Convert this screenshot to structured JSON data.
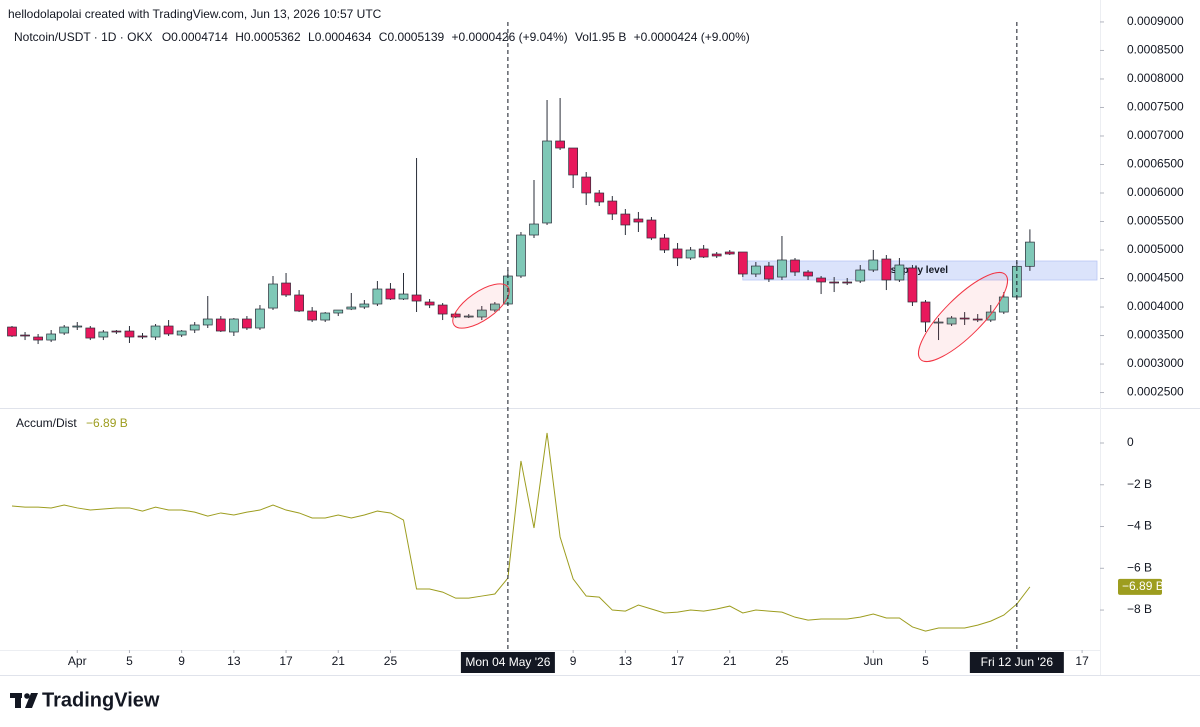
{
  "header": {
    "attribution": "hellodolapolai created with TradingView.com, Jun 13, 2026 10:57 UTC",
    "symbol": "Notcoin/USDT · 1D · OKX",
    "ohlc_labels": [
      "O",
      "H",
      "L",
      "C"
    ],
    "change": "+0.0000426 (+9.04%)",
    "volume": "Vol1.95 B",
    "volume_change": "+0.0000424 (+9.00%)"
  },
  "footer": {
    "brand": "TradingView"
  },
  "chart_data": [
    {
      "type": "candlestick",
      "up_color": "#7fc8b7",
      "down_color": "#e8185c",
      "categories": [
        "2026-03-27",
        "2026-03-28",
        "2026-03-29",
        "2026-03-30",
        "2026-03-31",
        "2026-04-01",
        "2026-04-02",
        "2026-04-03",
        "2026-04-04",
        "2026-04-05",
        "2026-04-06",
        "2026-04-07",
        "2026-04-08",
        "2026-04-09",
        "2026-04-10",
        "2026-04-11",
        "2026-04-12",
        "2026-04-13",
        "2026-04-14",
        "2026-04-15",
        "2026-04-16",
        "2026-04-17",
        "2026-04-18",
        "2026-04-19",
        "2026-04-20",
        "2026-04-21",
        "2026-04-22",
        "2026-04-23",
        "2026-04-24",
        "2026-04-25",
        "2026-04-26",
        "2026-04-27",
        "2026-04-28",
        "2026-04-29",
        "2026-04-30",
        "2026-05-01",
        "2026-05-02",
        "2026-05-03",
        "2026-05-04",
        "2026-05-05",
        "2026-05-06",
        "2026-05-07",
        "2026-05-08",
        "2026-05-09",
        "2026-05-10",
        "2026-05-11",
        "2026-05-12",
        "2026-05-13",
        "2026-05-14",
        "2026-05-15",
        "2026-05-16",
        "2026-05-17",
        "2026-05-18",
        "2026-05-19",
        "2026-05-20",
        "2026-05-21",
        "2026-05-22",
        "2026-05-23",
        "2026-05-24",
        "2026-05-25",
        "2026-05-26",
        "2026-05-27",
        "2026-05-28",
        "2026-05-29",
        "2026-05-30",
        "2026-05-31",
        "2026-06-01",
        "2026-06-02",
        "2026-06-03",
        "2026-06-04",
        "2026-06-05",
        "2026-06-06",
        "2026-06-07",
        "2026-06-08",
        "2026-06-09",
        "2026-06-10",
        "2026-06-11",
        "2026-06-12",
        "2026-06-13"
      ],
      "open": [
        0.0003649,
        0.0003509,
        0.0003474,
        0.0003421,
        0.0003544,
        0.0003649,
        0.0003632,
        0.0003474,
        0.0003579,
        0.0003579,
        0.0003492,
        0.0003474,
        0.0003667,
        0.0003509,
        0.0003597,
        0.0003685,
        0.000379,
        0.0003562,
        0.000379,
        0.0003632,
        0.0003982,
        0.0004421,
        0.0004211,
        0.000393,
        0.0003772,
        0.0003895,
        0.0003965,
        0.0004,
        0.0004053,
        0.0004316,
        0.0004141,
        0.0004211,
        0.0004088,
        0.0004035,
        0.0003877,
        0.0003842,
        0.0003825,
        0.0003947,
        0.0004053,
        0.0004544,
        0.0005263,
        0.0005474,
        0.0006912,
        0.0006789,
        0.000628,
        0.0006,
        0.0005859,
        0.0005631,
        0.0005544,
        0.0005526,
        0.000521,
        0.0005018,
        0.000486,
        0.0005018,
        0.000493,
        0.0004965,
        0.0004965,
        0.0004579,
        0.0004719,
        0.0004526,
        0.0004825,
        0.0004614,
        0.0004509,
        0.0004439,
        0.0004439,
        0.0004456,
        0.0004649,
        0.0004842,
        0.0004474,
        0.0004684,
        0.0004088,
        0.0003737,
        0.0003702,
        0.0003807,
        0.000379,
        0.0003772,
        0.0003912,
        0.0004176,
        0.0004714
      ],
      "high": [
        0.0003667,
        0.0003562,
        0.0003527,
        0.0003597,
        0.0003685,
        0.0003737,
        0.0003667,
        0.0003597,
        0.0003597,
        0.0003667,
        0.0003544,
        0.0003702,
        0.0003772,
        0.0003597,
        0.0003737,
        0.0004193,
        0.0003842,
        0.0003807,
        0.0003842,
        0.0004035,
        0.0004544,
        0.0004597,
        0.0004298,
        0.0004,
        0.0003912,
        0.0003947,
        0.0004246,
        0.0004123,
        0.0004456,
        0.0004421,
        0.0004597,
        0.0006614,
        0.0004141,
        0.000407,
        0.0003912,
        0.0003877,
        0.0004018,
        0.0004088,
        0.0004649,
        0.0005316,
        0.0006228,
        0.0007631,
        0.0007666,
        0.0006789,
        0.0006368,
        0.0006052,
        0.0005947,
        0.0005719,
        0.0005667,
        0.0005579,
        0.0005281,
        0.0005123,
        0.0005053,
        0.0005088,
        0.0004965,
        0.0005,
        0.0004965,
        0.000479,
        0.000479,
        0.0005246,
        0.000486,
        0.0004649,
        0.0004544,
        0.0004526,
        0.0004509,
        0.0004737,
        0.0005,
        0.0004912,
        0.000486,
        0.0004737,
        0.0004123,
        0.0003807,
        0.0003842,
        0.0003912,
        0.0003877,
        0.0004035,
        0.0004263,
        0.000479,
        0.0005362
      ],
      "low": [
        0.0003474,
        0.0003421,
        0.0003351,
        0.0003386,
        0.0003509,
        0.0003597,
        0.0003421,
        0.0003421,
        0.0003527,
        0.0003369,
        0.0003439,
        0.0003421,
        0.0003492,
        0.0003474,
        0.0003544,
        0.0003632,
        0.0003562,
        0.0003492,
        0.0003597,
        0.0003597,
        0.0003947,
        0.0004176,
        0.0003912,
        0.0003737,
        0.0003737,
        0.0003842,
        0.0003947,
        0.0003965,
        0.0004018,
        0.0004123,
        0.0004123,
        0.0003912,
        0.0003982,
        0.0003772,
        0.0003807,
        0.0003807,
        0.0003772,
        0.0003912,
        0.0004018,
        0.0004509,
        0.000521,
        0.0005439,
        0.0006754,
        0.0006087,
        0.0005789,
        0.0005772,
        0.0005526,
        0.0005263,
        0.0005316,
        0.0005175,
        0.0004947,
        0.0004719,
        0.0004825,
        0.000486,
        0.000486,
        0.0004912,
        0.0004526,
        0.0004526,
        0.0004439,
        0.0004474,
        0.0004544,
        0.0004474,
        0.0004228,
        0.0004263,
        0.0004386,
        0.0004421,
        0.0004614,
        0.0004298,
        0.0004439,
        0.0004018,
        0.0003562,
        0.0003421,
        0.0003667,
        0.0003685,
        0.0003737,
        0.0003737,
        0.0003877,
        0.0004123,
        0.0004634
      ],
      "close": [
        0.0003492,
        0.0003492,
        0.0003421,
        0.0003527,
        0.0003649,
        0.0003667,
        0.0003456,
        0.0003562,
        0.0003562,
        0.0003474,
        0.0003474,
        0.0003667,
        0.0003527,
        0.0003579,
        0.0003685,
        0.000379,
        0.0003579,
        0.000379,
        0.0003632,
        0.0003965,
        0.0004404,
        0.0004211,
        0.000393,
        0.0003772,
        0.0003895,
        0.0003947,
        0.0004,
        0.0004053,
        0.0004316,
        0.0004141,
        0.0004228,
        0.0004105,
        0.0004035,
        0.0003877,
        0.0003825,
        0.0003842,
        0.0003947,
        0.0004053,
        0.0004544,
        0.0005263,
        0.0005456,
        0.0006912,
        0.0006789,
        0.0006316,
        0.0006,
        0.0005842,
        0.0005631,
        0.0005439,
        0.0005491,
        0.000521,
        0.0005,
        0.000486,
        0.0005,
        0.0004877,
        0.0004895,
        0.000493,
        0.0004579,
        0.0004719,
        0.0004491,
        0.0004825,
        0.0004614,
        0.0004544,
        0.0004439,
        0.0004421,
        0.0004421,
        0.0004649,
        0.0004825,
        0.0004474,
        0.0004737,
        0.0004088,
        0.0003737,
        0.0003737,
        0.0003807,
        0.000379,
        0.0003772,
        0.0003912,
        0.0004176,
        0.0004714,
        0.0005139
      ],
      "xlim": [
        "2026-03-26",
        "2026-06-19"
      ],
      "ylim": [
        0.0002229,
        0.0009385
      ],
      "yticks": [
        {
          "value": 0.00025,
          "label": "0.0002500"
        },
        {
          "value": 0.0003,
          "label": "0.0003000"
        },
        {
          "value": 0.00035,
          "label": "0.0003500"
        },
        {
          "value": 0.0004,
          "label": "0.0004000"
        },
        {
          "value": 0.00045,
          "label": "0.0004500"
        },
        {
          "value": 0.0005,
          "label": "0.0005000"
        },
        {
          "value": 0.00055,
          "label": "0.0005500"
        },
        {
          "value": 0.0006,
          "label": "0.0006000"
        },
        {
          "value": 0.00065,
          "label": "0.0006500"
        },
        {
          "value": 0.0007,
          "label": "0.0007000"
        },
        {
          "value": 0.00075,
          "label": "0.0007500"
        },
        {
          "value": 0.0008,
          "label": "0.0008000"
        },
        {
          "value": 0.00085,
          "label": "0.0008500"
        },
        {
          "value": 0.0009,
          "label": "0.0009000"
        }
      ],
      "zones": [
        {
          "label": "supply level",
          "from": "2026-05-22",
          "top": 0.0004807,
          "bottom": 0.0004474,
          "color": "#dbe3fb"
        }
      ]
    },
    {
      "type": "line",
      "categories": [
        "2026-03-27",
        "2026-03-28",
        "2026-03-29",
        "2026-03-30",
        "2026-03-31",
        "2026-04-01",
        "2026-04-02",
        "2026-04-03",
        "2026-04-04",
        "2026-04-05",
        "2026-04-06",
        "2026-04-07",
        "2026-04-08",
        "2026-04-09",
        "2026-04-10",
        "2026-04-11",
        "2026-04-12",
        "2026-04-13",
        "2026-04-14",
        "2026-04-15",
        "2026-04-16",
        "2026-04-17",
        "2026-04-18",
        "2026-04-19",
        "2026-04-20",
        "2026-04-21",
        "2026-04-22",
        "2026-04-23",
        "2026-04-24",
        "2026-04-25",
        "2026-04-26",
        "2026-04-27",
        "2026-04-28",
        "2026-04-29",
        "2026-04-30",
        "2026-05-01",
        "2026-05-02",
        "2026-05-03",
        "2026-05-04",
        "2026-05-05",
        "2026-05-06",
        "2026-05-07",
        "2026-05-08",
        "2026-05-09",
        "2026-05-10",
        "2026-05-11",
        "2026-05-12",
        "2026-05-13",
        "2026-05-14",
        "2026-05-15",
        "2026-05-16",
        "2026-05-17",
        "2026-05-18",
        "2026-05-19",
        "2026-05-20",
        "2026-05-21",
        "2026-05-22",
        "2026-05-23",
        "2026-05-24",
        "2026-05-25",
        "2026-05-26",
        "2026-05-27",
        "2026-05-28",
        "2026-05-29",
        "2026-05-30",
        "2026-05-31",
        "2026-06-01",
        "2026-06-02",
        "2026-06-03",
        "2026-06-04",
        "2026-06-05",
        "2026-06-06",
        "2026-06-07",
        "2026-06-08",
        "2026-06-09",
        "2026-06-10",
        "2026-06-11",
        "2026-06-12",
        "2026-06-13"
      ],
      "series": [
        {
          "name": "Accum/Dist",
          "color": "#9d9d1f",
          "values": [
            -3.02,
            -3.07,
            -3.07,
            -3.11,
            -2.97,
            -3.11,
            -3.21,
            -3.16,
            -3.11,
            -3.11,
            -3.26,
            -3.07,
            -3.21,
            -3.21,
            -3.31,
            -3.5,
            -3.35,
            -3.45,
            -3.31,
            -3.21,
            -2.97,
            -3.21,
            -3.35,
            -3.59,
            -3.59,
            -3.45,
            -3.59,
            -3.45,
            -3.26,
            -3.35,
            -3.69,
            -6.99,
            -6.99,
            -7.14,
            -7.43,
            -7.43,
            -7.33,
            -7.23,
            -6.47,
            -0.86,
            -4.07,
            0.48,
            -4.5,
            -6.51,
            -7.33,
            -7.38,
            -8.0,
            -8.05,
            -7.76,
            -7.95,
            -8.14,
            -8.1,
            -8.0,
            -8.05,
            -7.95,
            -7.81,
            -8.14,
            -8.0,
            -8.05,
            -8.1,
            -8.34,
            -8.48,
            -8.43,
            -8.43,
            -8.43,
            -8.34,
            -8.19,
            -8.38,
            -8.38,
            -8.81,
            -9.01,
            -8.86,
            -8.86,
            -8.86,
            -8.72,
            -8.53,
            -8.24,
            -7.71,
            -6.89
          ],
          "value_labels": [
            null,
            null,
            null,
            null,
            null,
            null,
            null,
            null,
            null,
            null,
            null,
            null,
            null,
            null,
            null,
            null,
            null,
            null,
            null,
            null,
            null,
            null,
            null,
            null,
            null,
            null,
            null,
            null,
            null,
            null,
            null,
            null,
            null,
            null,
            null,
            null,
            null,
            null,
            null,
            null,
            null,
            null,
            null,
            null,
            null,
            null,
            null,
            null,
            null,
            null,
            null,
            null,
            null,
            null,
            null,
            null,
            null,
            null,
            null,
            null,
            null,
            null,
            null,
            null,
            null,
            null,
            null,
            null,
            null,
            null,
            null,
            null,
            null,
            null,
            null,
            null,
            null,
            null,
            "−6.89 B"
          ]
        }
      ],
      "xlim": [
        "2026-03-26",
        "2026-06-19"
      ],
      "ylim": [
        -11.11,
        1.58
      ],
      "yticks": [
        0,
        {
          "value": -2,
          "label": "−2 B"
        },
        {
          "value": -4,
          "label": "−4 B"
        },
        {
          "value": -6,
          "label": "−6 B"
        },
        {
          "value": -8,
          "label": "−8 B"
        }
      ],
      "xticks": [
        {
          "value": "2026-04-01",
          "label": "Apr"
        },
        {
          "value": "2026-04-05",
          "label": "5"
        },
        {
          "value": "2026-04-09",
          "label": "9"
        },
        {
          "value": "2026-04-13",
          "label": "13"
        },
        {
          "value": "2026-04-17",
          "label": "17"
        },
        {
          "value": "2026-04-21",
          "label": "21"
        },
        {
          "value": "2026-04-25",
          "label": "25"
        },
        {
          "value": "2026-05-09",
          "label": "9"
        },
        {
          "value": "2026-05-13",
          "label": "13"
        },
        {
          "value": "2026-05-17",
          "label": "17"
        },
        {
          "value": "2026-05-21",
          "label": "21"
        },
        {
          "value": "2026-05-25",
          "label": "25"
        },
        {
          "value": "2026-06-01",
          "label": "Jun"
        },
        {
          "value": "2026-06-05",
          "label": "5"
        },
        {
          "value": "2026-06-17",
          "label": "17"
        }
      ],
      "crosshairs": [
        {
          "x": "2026-05-04",
          "label": "Mon 04 May '26"
        },
        {
          "x": "2026-06-12",
          "label": "Fri 12 Jun '26"
        }
      ]
    }
  ]
}
